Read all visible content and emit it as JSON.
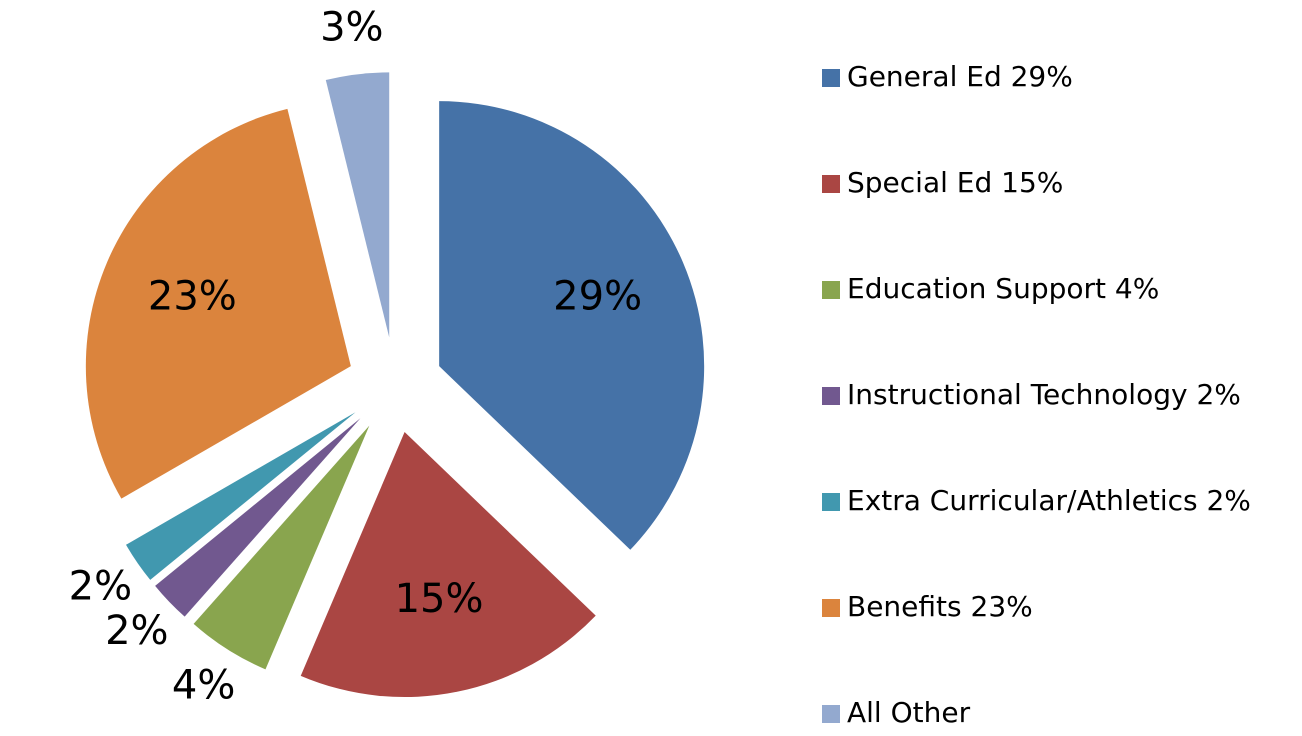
{
  "chart_data": {
    "type": "pie",
    "categories": [
      "General Ed   29%",
      "Special Ed   15%",
      "Education Support   4%",
      "Instructional Technology   2%",
      "Extra Curricular/Athletics   2%",
      "Benefits   23%",
      "All Other"
    ],
    "values": [
      29,
      15,
      4,
      2,
      2,
      23,
      3
    ],
    "value_labels": [
      "29%",
      "15%",
      "4%",
      "2%",
      "2%",
      "23%",
      "3%"
    ],
    "colors": [
      "#4572a7",
      "#aa4643",
      "#89a54e",
      "#71588f",
      "#4198af",
      "#db843d",
      "#93a9cf"
    ],
    "legend": "right"
  }
}
